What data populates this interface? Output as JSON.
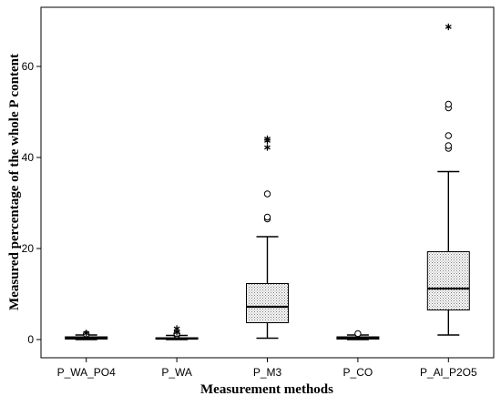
{
  "chart_data": {
    "type": "boxplot",
    "xlabel": "Measurement methods",
    "ylabel": "Measured percentage of the whole P content",
    "ylim": [
      -4,
      73
    ],
    "yticks": [
      0,
      20,
      40,
      60
    ],
    "grid": false,
    "legend": "none",
    "categories": [
      "P_WA_PO4",
      "P_WA",
      "P_M3",
      "P_CO",
      "P_Al_P2O5"
    ],
    "boxes": [
      {
        "category": "P_WA_PO4",
        "whisker_low": 0,
        "q1": 0.1,
        "median": 0.3,
        "q3": 0.6,
        "whisker_high": 1.0,
        "outliers": [
          1.2
        ],
        "extremes": [
          1.4
        ]
      },
      {
        "category": "P_WA",
        "whisker_low": 0,
        "q1": 0.1,
        "median": 0.2,
        "q3": 0.4,
        "whisker_high": 0.9,
        "outliers": [
          1.0,
          1.3
        ],
        "extremes": [
          1.6,
          2.4
        ]
      },
      {
        "category": "P_M3",
        "whisker_low": 0.3,
        "q1": 3.7,
        "median": 7.2,
        "q3": 12.3,
        "whisker_high": 22.6,
        "outliers": [
          26.5,
          26.9,
          32.0
        ],
        "extremes": [
          42.2,
          43.7,
          44.1
        ]
      },
      {
        "category": "P_CO",
        "whisker_low": 0,
        "q1": 0.1,
        "median": 0.3,
        "q3": 0.6,
        "whisker_high": 1.0,
        "outliers": [
          1.3
        ],
        "extremes": []
      },
      {
        "category": "P_Al_P2O5",
        "whisker_low": 1.0,
        "q1": 6.5,
        "median": 11.2,
        "q3": 19.3,
        "whisker_high": 36.9,
        "outliers": [
          42.0,
          42.6,
          44.8,
          50.9,
          51.7
        ],
        "extremes": [
          68.7
        ]
      }
    ],
    "colors": {
      "box_fill_pattern": "#c8c8c8",
      "line": "#000000",
      "background": "#ffffff"
    },
    "markers": {
      "outlier": "circle",
      "extreme": "star"
    }
  }
}
